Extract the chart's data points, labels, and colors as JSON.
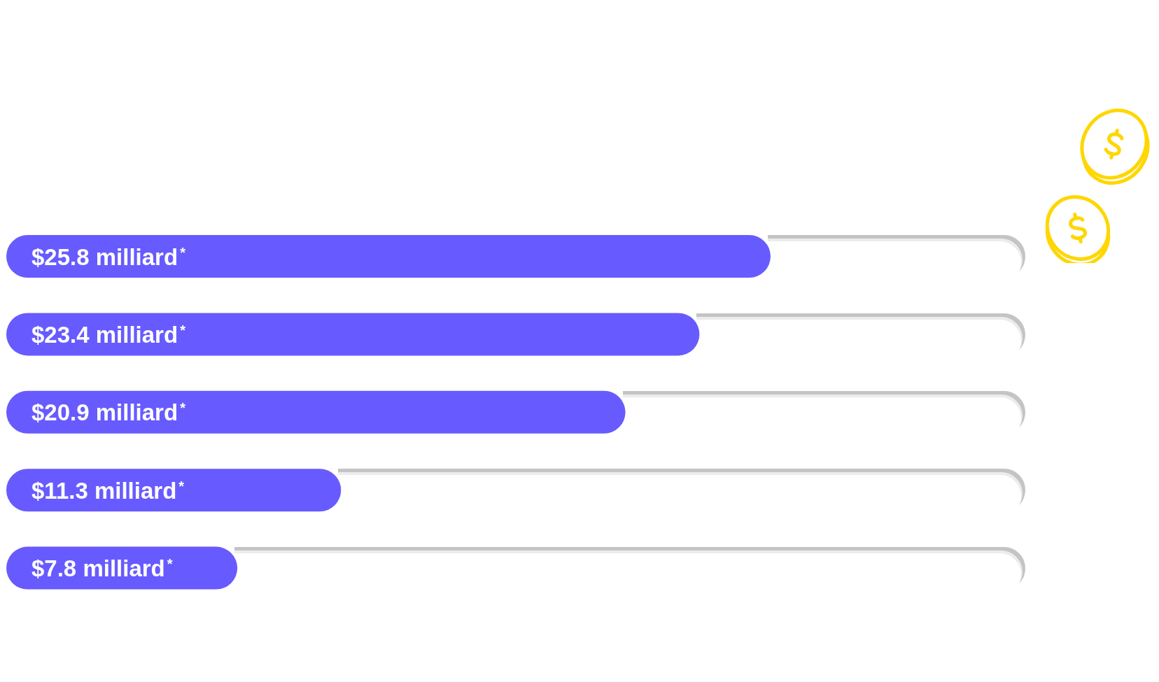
{
  "chart_data": {
    "type": "bar",
    "orientation": "horizontal",
    "categories": [
      null,
      null,
      null,
      null,
      null
    ],
    "values": [
      25.8,
      23.4,
      20.9,
      11.3,
      7.8
    ],
    "color": "#675bff",
    "value_labels": [
      "$25.8 milliard$^{*}$",
      "$23.4 milliard$^{*}$",
      "$20.9 milliard$^{*}$",
      "$11.3 milliard$^{*}$",
      "$7.8 milliard$^{*}$"
    ]
  }
}
